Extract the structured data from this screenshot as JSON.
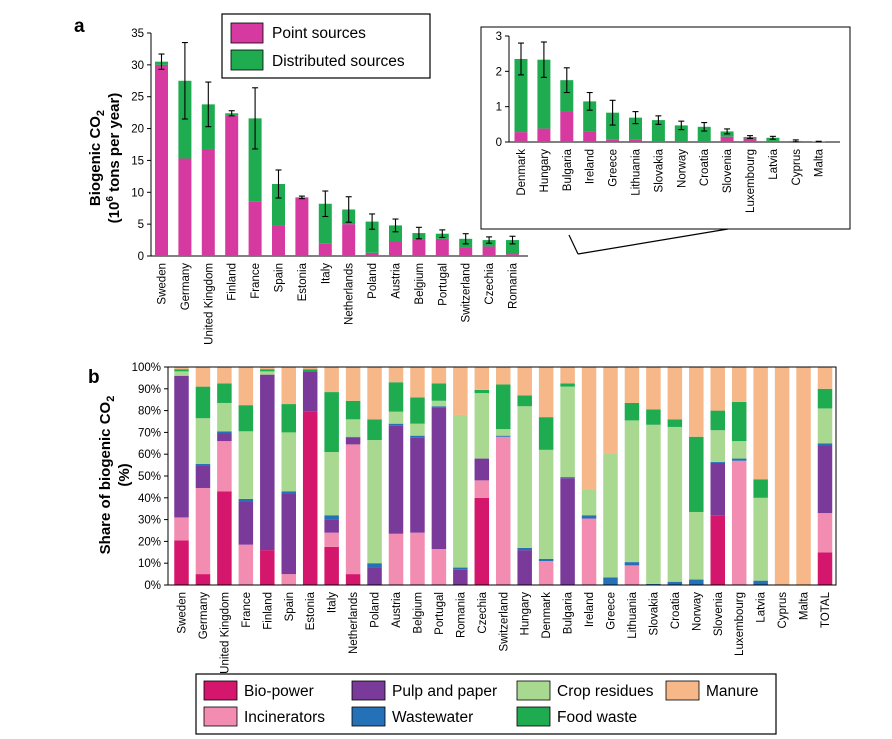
{
  "panel_a": {
    "panel_label": "a",
    "chart_data": {
      "type": "bar",
      "stacked": true,
      "ylabel_line1": "Biogenic CO",
      "ylabel_line1_sub": "2",
      "ylabel_line2_a": "(10",
      "ylabel_line2_sup": "6",
      "ylabel_line2_b": " tons per year)",
      "ylim": [
        0,
        35
      ],
      "yticks": [
        0,
        5,
        10,
        15,
        20,
        25,
        30,
        35
      ],
      "categories": [
        "Sweden",
        "Germany",
        "United Kingdom",
        "Finland",
        "France",
        "Spain",
        "Estonia",
        "Italy",
        "Netherlands",
        "Poland",
        "Austria",
        "Belgium",
        "Portugal",
        "Switzerland",
        "Czechia",
        "Romania"
      ],
      "series": [
        {
          "name": "Point sources",
          "color": "#d63aa0",
          "values": [
            30.0,
            15.3,
            16.8,
            22.1,
            8.5,
            4.8,
            9.1,
            2.0,
            5.0,
            0.5,
            2.2,
            2.6,
            2.7,
            1.4,
            1.5,
            0.3
          ]
        },
        {
          "name": "Distributed sources",
          "color": "#1fab4f",
          "values": [
            0.5,
            12.2,
            7.0,
            0.3,
            13.1,
            6.5,
            0.1,
            6.2,
            2.3,
            4.9,
            2.6,
            1.0,
            0.8,
            1.3,
            1.0,
            2.2
          ]
        }
      ],
      "errors": [
        1.2,
        6.0,
        3.5,
        0.4,
        4.8,
        2.2,
        0.2,
        2.0,
        2.0,
        1.2,
        1.0,
        0.9,
        0.6,
        0.8,
        0.5,
        0.6
      ],
      "legend": [
        "Point sources",
        "Distributed sources"
      ]
    }
  },
  "panel_a_inset": {
    "chart_data": {
      "type": "bar",
      "stacked": true,
      "ylim": [
        0,
        3
      ],
      "yticks": [
        0,
        1,
        2,
        3
      ],
      "categories": [
        "Denmark",
        "Hungary",
        "Bulgaria",
        "Ireland",
        "Greece",
        "Lithuania",
        "Slovakia",
        "Norway",
        "Croatia",
        "Slovenia",
        "Luxembourg",
        "Latvia",
        "Cyprus",
        "Malta"
      ],
      "series": [
        {
          "name": "Point sources",
          "color": "#d63aa0",
          "values": [
            0.28,
            0.38,
            0.85,
            0.3,
            0.08,
            0.06,
            0.0,
            0.0,
            0.0,
            0.15,
            0.1,
            0.03,
            0.0,
            0.0
          ]
        },
        {
          "name": "Distributed sources",
          "color": "#1fab4f",
          "values": [
            2.07,
            1.95,
            0.9,
            0.85,
            0.75,
            0.63,
            0.62,
            0.47,
            0.43,
            0.15,
            0.04,
            0.09,
            0.03,
            0.01
          ]
        }
      ],
      "errors": [
        0.45,
        0.5,
        0.35,
        0.25,
        0.35,
        0.17,
        0.12,
        0.12,
        0.12,
        0.07,
        0.04,
        0.04,
        0.03,
        0.01
      ]
    }
  },
  "panel_b": {
    "panel_label": "b",
    "chart_data": {
      "type": "bar",
      "stacked": true,
      "percent": true,
      "ylabel_line1": "Share of biogenic CO",
      "ylabel_line1_sub": "2",
      "ylabel_line2": "(%)",
      "ylim": [
        0,
        100
      ],
      "yticks": [
        "0%",
        "10%",
        "20%",
        "30%",
        "40%",
        "50%",
        "60%",
        "70%",
        "80%",
        "90%",
        "100%"
      ],
      "categories": [
        "Sweden",
        "Germany",
        "United Kingdom",
        "France",
        "Finland",
        "Spain",
        "Estonia",
        "Italy",
        "Netherlands",
        "Poland",
        "Austria",
        "Belgium",
        "Portugal",
        "Romania",
        "Czechia",
        "Switzerland",
        "Hungary",
        "Denmark",
        "Bulgaria",
        "Ireland",
        "Greece",
        "Lithuania",
        "Slovakia",
        "Croatia",
        "Norway",
        "Slovenia",
        "Luxembourg",
        "Latvia",
        "Cyprus",
        "Malta",
        "TOTAL"
      ],
      "series": [
        {
          "name": "Bio-power",
          "color": "#d4176c",
          "values": [
            20.5,
            5,
            43,
            0,
            16,
            0,
            79.5,
            17.5,
            5,
            0,
            0,
            0,
            0,
            0,
            40,
            0,
            0,
            0,
            0,
            0,
            0,
            0,
            0,
            0,
            0,
            32,
            0,
            0,
            0,
            0,
            15
          ]
        },
        {
          "name": "Incinerators",
          "color": "#f28cb0",
          "values": [
            10.5,
            39.5,
            23,
            18.5,
            0,
            5,
            0,
            6.5,
            59.5,
            0,
            23.5,
            24,
            16.5,
            0,
            8,
            68,
            0,
            11,
            0,
            30.5,
            0,
            9,
            0,
            0,
            0,
            0,
            57,
            0,
            0,
            0,
            18
          ]
        },
        {
          "name": "Pulp and paper",
          "color": "#7a3a9a",
          "values": [
            65,
            10.5,
            3.5,
            20,
            80.5,
            37,
            18.5,
            6,
            3,
            8,
            49.5,
            43.5,
            65,
            7,
            10,
            0,
            16,
            0,
            49,
            0,
            0,
            0,
            0,
            0,
            0,
            24,
            0,
            0,
            0,
            0,
            31
          ]
        },
        {
          "name": "Wastewater",
          "color": "#2471b8",
          "values": [
            0,
            0.5,
            1,
            1,
            0,
            1,
            0,
            2,
            0.5,
            2,
            1,
            1,
            0.5,
            1,
            0,
            0.5,
            1,
            1,
            0.5,
            1.5,
            3.5,
            1.5,
            0.5,
            1.5,
            2.5,
            0.5,
            1,
            2,
            0,
            0,
            1
          ]
        },
        {
          "name": "Crop residues",
          "color": "#a9d990",
          "values": [
            2,
            21,
            13,
            31,
            1.5,
            27,
            0,
            29,
            8,
            56.5,
            5.5,
            5.5,
            2.5,
            70,
            30,
            3,
            65,
            50,
            41.5,
            12,
            57,
            65,
            73,
            71,
            31,
            14.5,
            8,
            38,
            0,
            0,
            16
          ]
        },
        {
          "name": "Food waste",
          "color": "#1fab4f",
          "values": [
            1,
            14.5,
            9,
            12,
            1,
            13,
            1,
            27.5,
            8.5,
            9.5,
            13.5,
            12,
            8,
            0,
            1.5,
            20.5,
            5,
            15,
            1.5,
            0,
            0,
            8,
            7,
            3.5,
            34.5,
            9,
            18,
            8.5,
            0,
            0,
            9
          ]
        },
        {
          "name": "Manure",
          "color": "#f6b888",
          "values": [
            1,
            9,
            7.5,
            17.5,
            1,
            17,
            1,
            11.5,
            15.5,
            24,
            7,
            14,
            7.5,
            22,
            10.5,
            8,
            13,
            23,
            7.5,
            56,
            39.5,
            16.5,
            19.5,
            24,
            32,
            20,
            16,
            51.5,
            100,
            100,
            10
          ]
        }
      ],
      "legend": [
        "Bio-power",
        "Pulp and paper",
        "Crop residues",
        "Manure",
        "Incinerators",
        "Wastewater",
        "Food waste"
      ]
    }
  }
}
